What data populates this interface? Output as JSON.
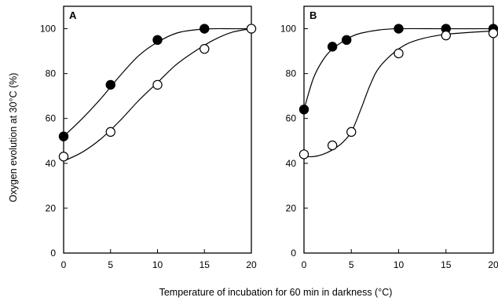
{
  "figure": {
    "xlabel": "Temperature of incubation for 60 min in darkness (°C)",
    "ylabel": "Oxygen evolution at 30°C (%)"
  },
  "chart_data": [
    {
      "type": "line",
      "panel": "A",
      "xlim": [
        0,
        20
      ],
      "ylim": [
        0,
        110
      ],
      "xticks": [
        0,
        5,
        10,
        15,
        20
      ],
      "yticks": [
        0,
        20,
        40,
        60,
        80,
        100
      ],
      "grid": false,
      "series": [
        {
          "marker": "filled-circle",
          "x": [
            0,
            5,
            10,
            15
          ],
          "y": [
            52,
            75,
            95,
            100
          ],
          "curve_x": [
            0,
            2,
            4,
            6,
            8,
            10,
            12,
            14,
            16,
            18,
            20
          ],
          "curve_y": [
            52,
            60,
            69,
            79,
            88,
            94,
            98,
            99.5,
            100,
            100,
            100
          ]
        },
        {
          "marker": "open-circle",
          "x": [
            0,
            5,
            10,
            15,
            20
          ],
          "y": [
            43,
            54,
            75,
            91,
            100
          ],
          "curve_x": [
            0,
            2,
            4,
            6,
            8,
            10,
            12,
            14,
            16,
            18,
            20
          ],
          "curve_y": [
            41,
            45,
            51,
            59,
            68,
            76,
            84,
            90,
            95,
            98.5,
            100
          ]
        }
      ]
    },
    {
      "type": "line",
      "panel": "B",
      "xlim": [
        0,
        20
      ],
      "ylim": [
        0,
        110
      ],
      "xticks": [
        0,
        5,
        10,
        15,
        20
      ],
      "yticks": [
        0,
        20,
        40,
        60,
        80,
        100
      ],
      "grid": false,
      "series": [
        {
          "marker": "filled-circle",
          "x": [
            0,
            3,
            4.5,
            10,
            15,
            20
          ],
          "y": [
            64,
            92,
            95,
            100,
            100,
            100
          ],
          "curve_x": [
            0,
            1,
            2,
            3,
            4,
            5,
            6,
            8,
            10,
            15,
            20
          ],
          "curve_y": [
            64,
            78,
            86,
            91,
            94,
            96.5,
            98,
            99.5,
            100,
            100,
            100
          ]
        },
        {
          "marker": "open-circle",
          "x": [
            0,
            3,
            5,
            10,
            15,
            20
          ],
          "y": [
            44,
            48,
            54,
            89,
            97,
            98
          ],
          "curve_x": [
            0,
            1,
            2,
            3,
            4,
            5,
            6,
            7,
            8,
            10,
            12,
            15,
            20
          ],
          "curve_y": [
            43,
            43,
            44,
            46,
            49,
            54,
            64,
            75,
            83,
            91,
            95,
            97.5,
            99
          ]
        }
      ]
    }
  ]
}
